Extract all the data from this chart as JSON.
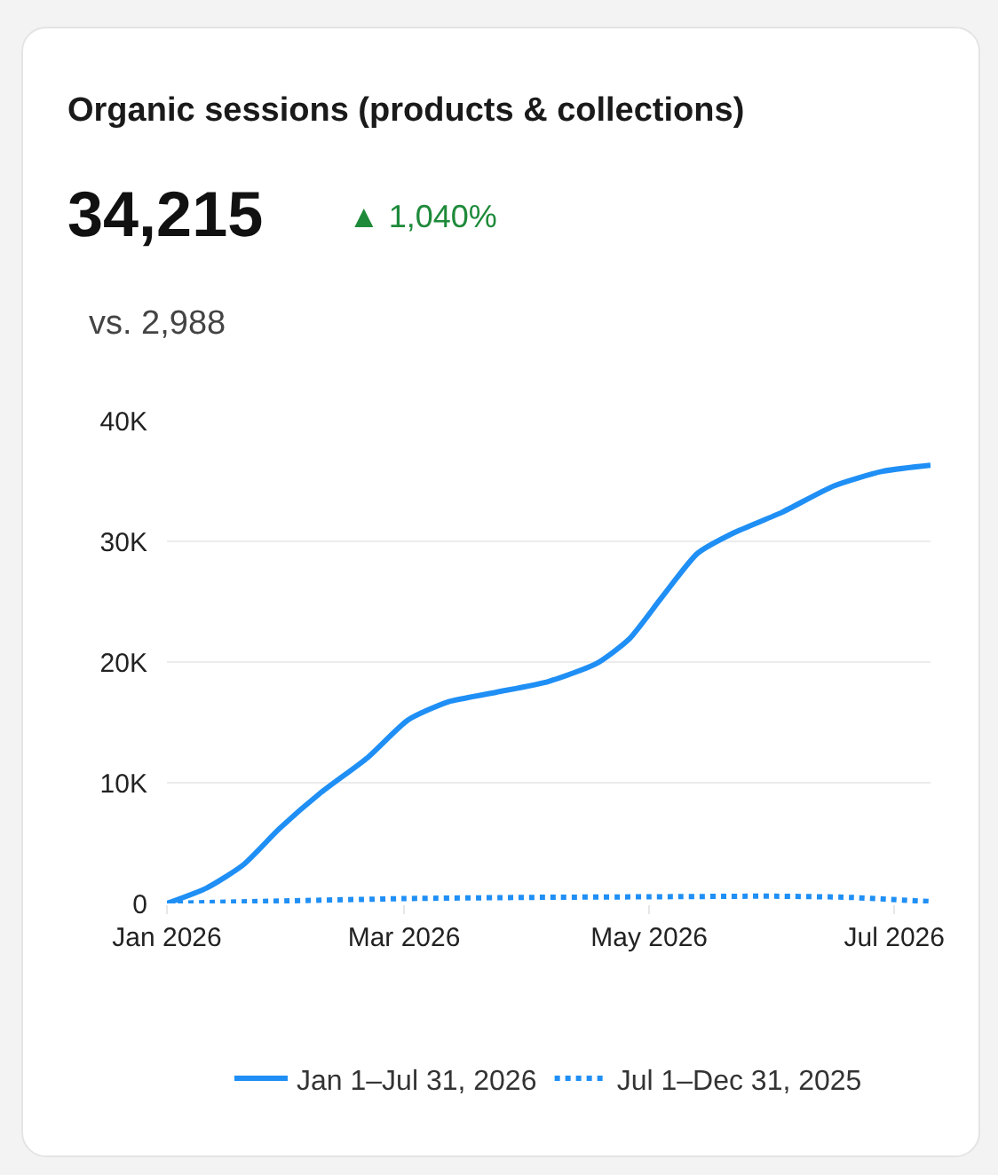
{
  "chart_data": {
    "type": "line",
    "title": "Organic sessions (products & collections)",
    "annotations": [
      "34,215",
      "▲ 1,040%",
      "vs. 2,988"
    ],
    "xlim": [
      "2026-01-01",
      "2026-07-10"
    ],
    "xticks": [
      {
        "value": "2026-01-01",
        "label": "Jan 2026"
      },
      {
        "value": "2026-03-01",
        "label": "Mar 2026"
      },
      {
        "value": "2026-05-01",
        "label": "May 2026"
      },
      {
        "value": "2026-07-01",
        "label": "Jul 2026"
      }
    ],
    "ylim": [
      0,
      40000
    ],
    "yticks": [
      0,
      {
        "value": 10000,
        "label": "10K"
      },
      {
        "value": 20000,
        "label": "20K"
      },
      {
        "value": 30000,
        "label": "30K"
      },
      {
        "value": 40000,
        "label": "40K"
      }
    ],
    "grid": "y",
    "legend": "bottom",
    "marker": "none",
    "series": [
      {
        "name": "Jan 1–Jul 31, 2026",
        "color": "#1f8ff5",
        "line_style": "solid",
        "x": [
          "2026-01-01",
          "2026-01-11",
          "2026-01-20",
          "2026-01-29",
          "2026-02-08",
          "2026-02-20",
          "2026-03-02",
          "2026-03-12",
          "2026-03-24",
          "2026-04-06",
          "2026-04-18",
          "2026-04-26",
          "2026-05-04",
          "2026-05-13",
          "2026-05-22",
          "2026-06-03",
          "2026-06-16",
          "2026-06-28",
          "2026-07-10"
        ],
        "values": [
          0,
          1300,
          3200,
          6200,
          9100,
          12100,
          15200,
          16700,
          17500,
          18400,
          19900,
          21900,
          25300,
          29000,
          30700,
          32400,
          34600,
          35800,
          36300
        ]
      },
      {
        "name": "Jul 1–Dec 31, 2025",
        "color": "#1f8ff5",
        "line_style": "dotted",
        "x": [
          "2026-01-01",
          "2026-03-01",
          "2026-04-01",
          "2026-05-01",
          "2026-06-01",
          "2026-06-20",
          "2026-07-10"
        ],
        "values": [
          0,
          400,
          500,
          550,
          600,
          500,
          150
        ]
      }
    ]
  }
}
